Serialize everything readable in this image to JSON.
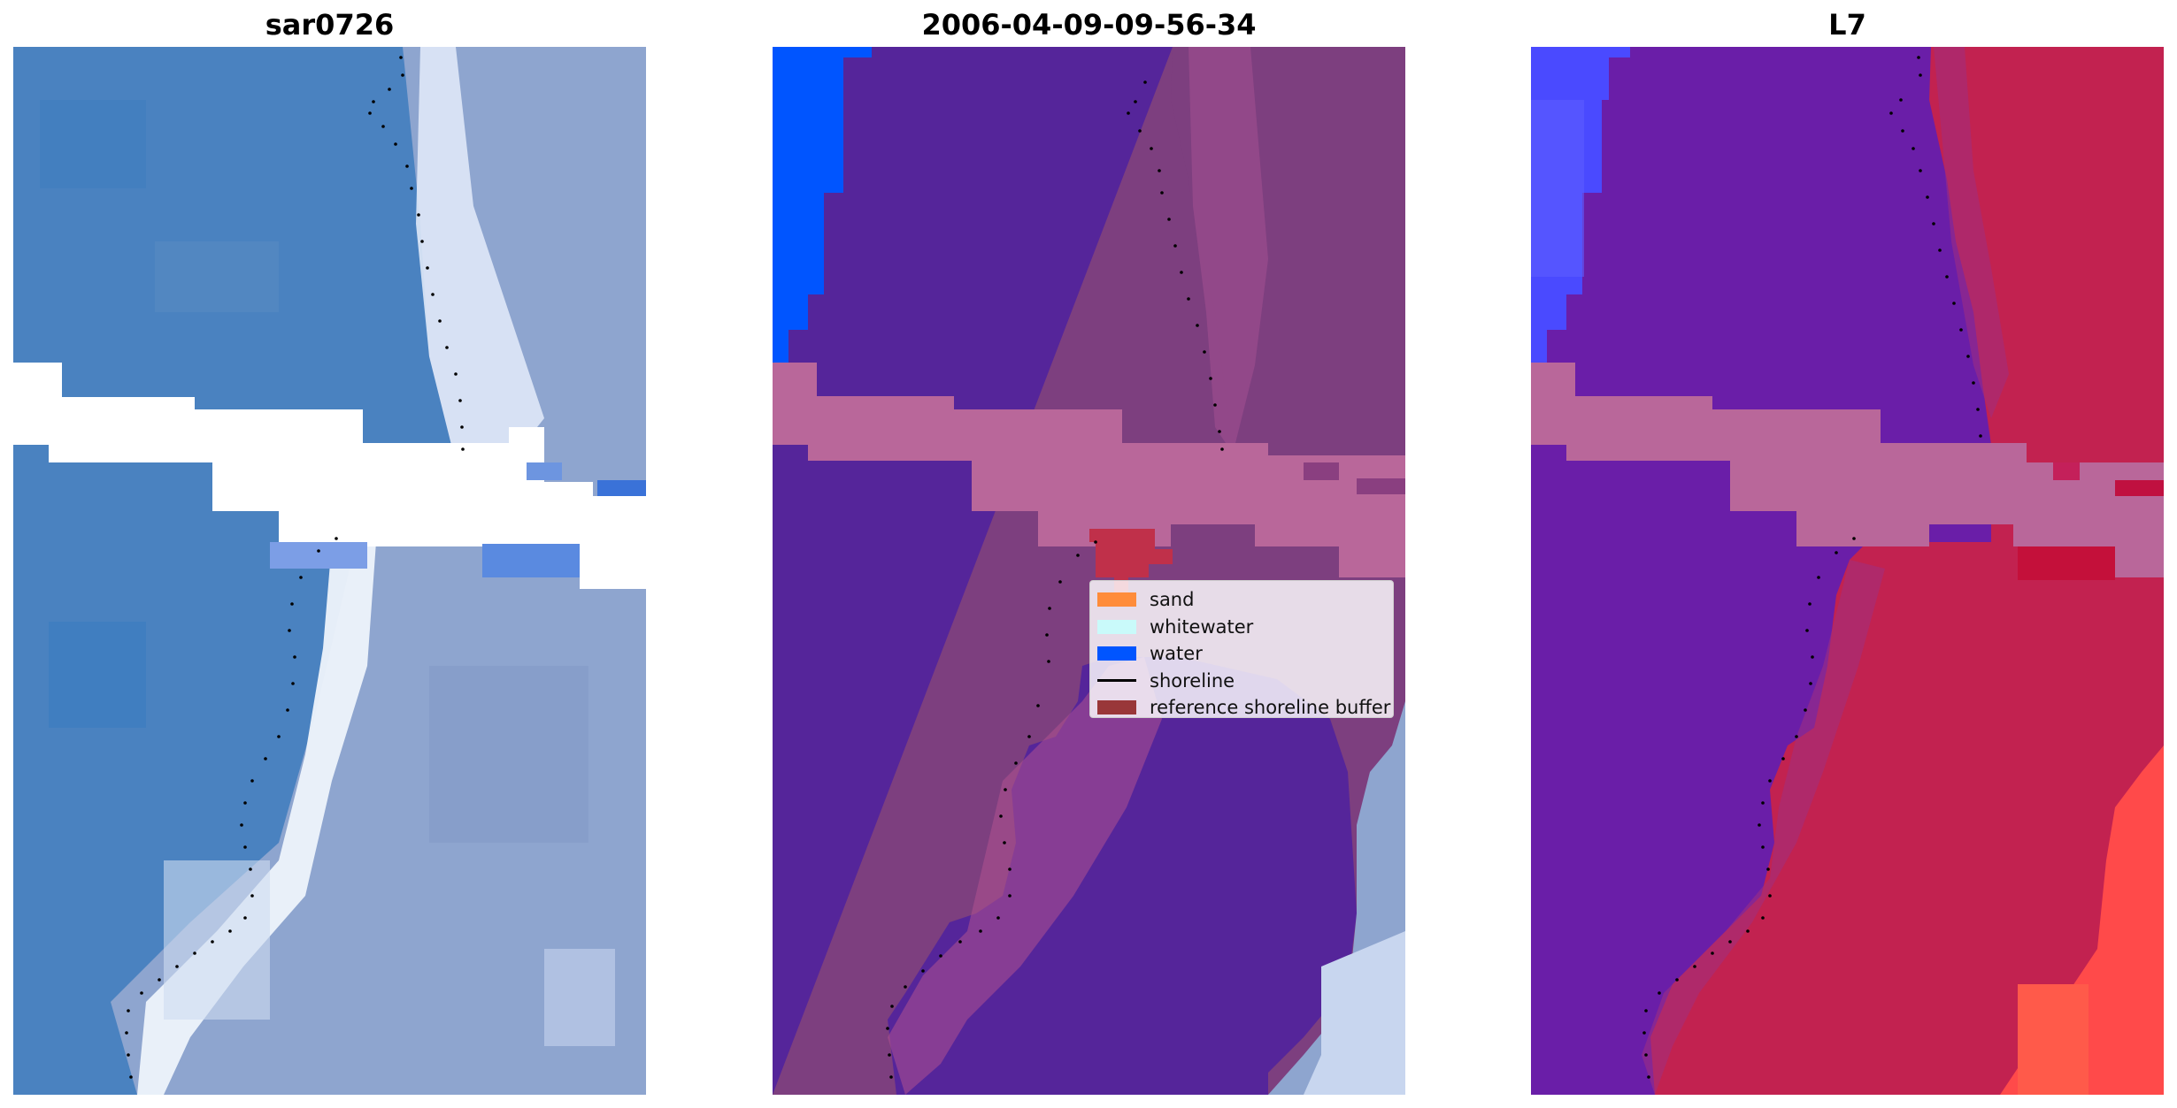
{
  "panels": [
    {
      "title": "sar0726"
    },
    {
      "title": "2006-04-09-09-56-34"
    },
    {
      "title": "L7"
    }
  ],
  "legend": {
    "items": [
      {
        "label": "sand",
        "color": "#ff8c3a",
        "kind": "patch"
      },
      {
        "label": "whitewater",
        "color": "#c9fafa",
        "kind": "patch"
      },
      {
        "label": "water",
        "color": "#0055ff",
        "kind": "patch"
      },
      {
        "label": "shoreline",
        "color": "#000000",
        "kind": "line"
      },
      {
        "label": "reference shoreline buffer",
        "color": "#8b1a1a",
        "kind": "patch"
      }
    ]
  },
  "colors": {
    "rgb_water": "#3f7fc0",
    "rgb_land": "#8fa6cc",
    "rgb_whitewater": "#eef3fb",
    "class_overlay_land": "#7a3f7e",
    "class_overlay_sea": "#55259a",
    "class_water": "#0055ff",
    "nodata_band": "#b9679a",
    "buffer": "#c0304a",
    "ndwi_sea": "#6a1ea8",
    "ndwi_land": "#c22250",
    "ndwi_bright": "#ff4444",
    "ndwi_water": "#4a4aff"
  }
}
